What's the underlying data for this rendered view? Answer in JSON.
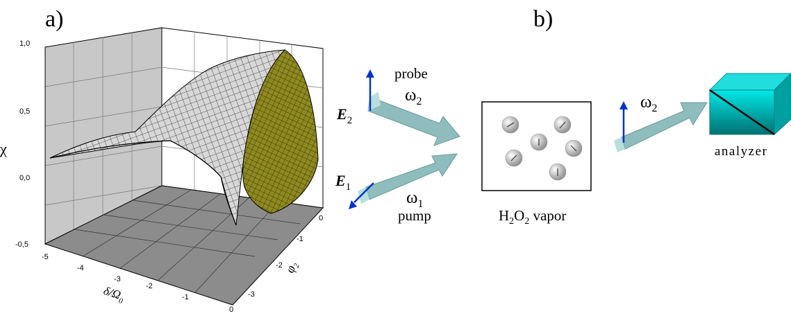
{
  "panel_a": {
    "label": "a)",
    "z_axis": {
      "label": "χ",
      "ticks": [
        "1,0",
        "0,5",
        "0,0",
        "-0,5"
      ]
    },
    "x_axis": {
      "label_main": "δ/Ω",
      "label_sub": "0",
      "ticks": [
        "-5",
        "-4",
        "-3",
        "-2",
        "-1",
        "0"
      ]
    },
    "y_axis": {
      "label_main": "φ",
      "label_sub": "2",
      "ticks": [
        "0",
        "-1",
        "-2",
        "-3"
      ]
    },
    "colors": {
      "surface_front": "#d4d4d4",
      "surface_back": "#8f8a20",
      "floor": "#8c8c8c",
      "back_wall": "#c8c8c8"
    }
  },
  "panel_b": {
    "label": "b)",
    "probe_field": {
      "symbol": "E",
      "sub": "2"
    },
    "pump_field": {
      "symbol": "E",
      "sub": "1"
    },
    "probe_label": "probe",
    "probe_freq": {
      "symbol": "ω",
      "sub": "2"
    },
    "pump_freq": {
      "symbol": "ω",
      "sub": "1"
    },
    "pump_label": "pump",
    "vapor": {
      "parts": [
        "H",
        "2",
        "O",
        "2",
        " vapor"
      ]
    },
    "output_freq": {
      "symbol": "ω",
      "sub": "2"
    },
    "analyzer_label": "analyzer",
    "colors": {
      "beam": "#8fbcbc",
      "beam_light": "#b8dede",
      "field_arrow": "#0033cc",
      "analyzer_top": "#22dddd",
      "analyzer_front": "#00b0b0"
    }
  }
}
